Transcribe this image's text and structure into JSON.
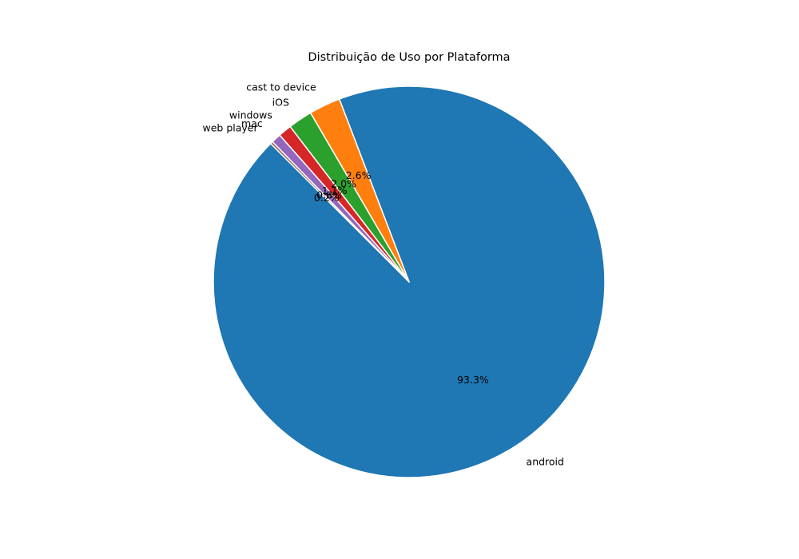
{
  "chart_data": {
    "type": "pie",
    "title": "Distribuição de Uso por Plataforma",
    "start_angle_deg": 135,
    "direction": "counterclockwise",
    "legend": "none",
    "slices": [
      {
        "label": "android",
        "value": 93.3,
        "pct_label": "93.3%",
        "color": "#1f77b4"
      },
      {
        "label": "cast to device",
        "value": 2.6,
        "pct_label": "2.6%",
        "color": "#ff7f0e"
      },
      {
        "label": "iOS",
        "value": 2.0,
        "pct_label": "2.0%",
        "color": "#2ca02c"
      },
      {
        "label": "windows",
        "value": 1.1,
        "pct_label": "1.1%",
        "color": "#d62728"
      },
      {
        "label": "mac",
        "value": 0.8,
        "pct_label": "0.8%",
        "color": "#9467bd"
      },
      {
        "label": "web player",
        "value": 0.2,
        "pct_label": "0.2%",
        "color": "#8c564b"
      }
    ]
  }
}
